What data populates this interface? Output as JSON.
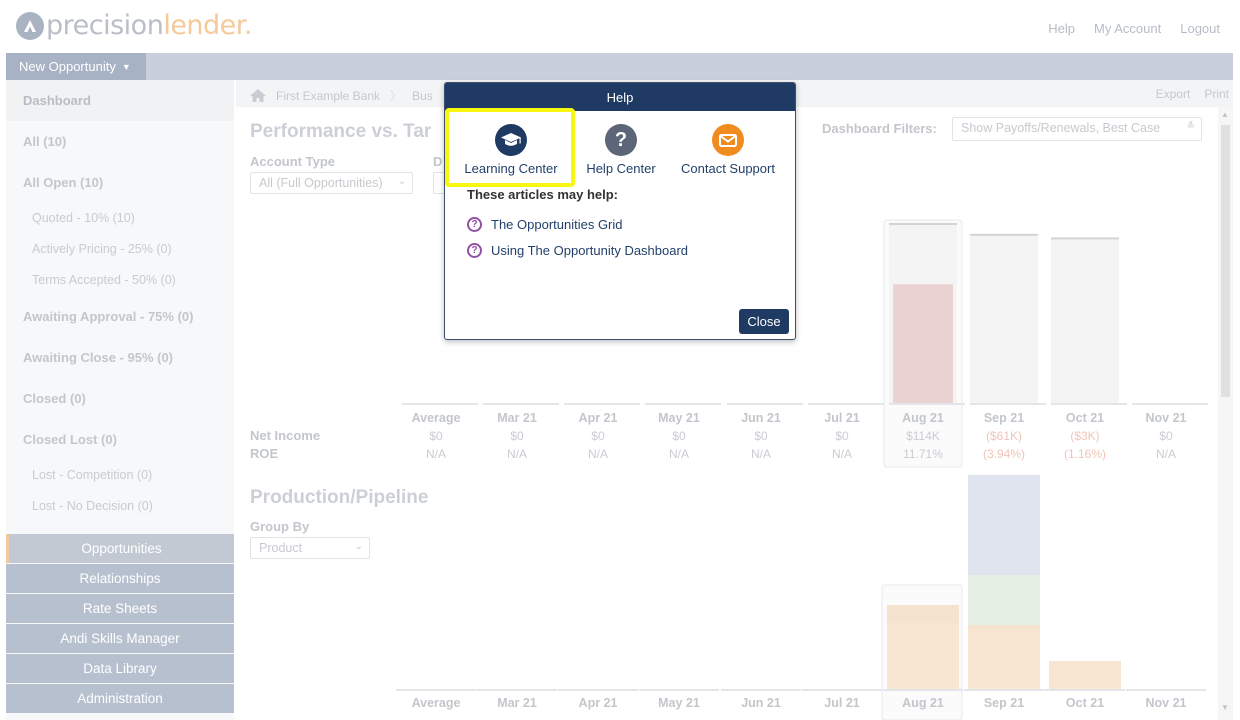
{
  "header": {
    "logo_part1": "precision",
    "logo_part2": "lender.",
    "links": [
      "Help",
      "My Account",
      "Logout"
    ]
  },
  "nav": {
    "new_opportunity": "New Opportunity"
  },
  "sidebar": {
    "dashboard": "Dashboard",
    "all": "All (10)",
    "all_open": "All Open (10)",
    "quoted": "Quoted - 10% (10)",
    "actively_pricing": "Actively Pricing - 25% (0)",
    "terms_accepted": "Terms Accepted - 50% (0)",
    "awaiting_approval": "Awaiting Approval - 75% (0)",
    "awaiting_close": "Awaiting Close - 95% (0)",
    "closed": "Closed (0)",
    "closed_lost": "Closed Lost (0)",
    "lost_competition": "Lost - Competition (0)",
    "lost_no_decision": "Lost - No Decision (0)",
    "modules": [
      "Opportunities",
      "Relationships",
      "Rate Sheets",
      "Andi Skills Manager",
      "Data Library",
      "Administration"
    ]
  },
  "breadcrumb": {
    "bank": "First Example Bank",
    "next": "Bus",
    "export": "Export",
    "print": "Print"
  },
  "performance": {
    "title": "Performance vs. Tar",
    "account_type_label": "Account Type",
    "account_type_value": "All (Full Opportunities)",
    "d_label": "D",
    "filters_label": "Dashboard Filters:",
    "filters_value": "Show Payoffs/Renewals, Best Case",
    "row_net_income": "Net Income",
    "row_roe": "ROE"
  },
  "production": {
    "title": "Production/Pipeline",
    "group_by_label": "Group By",
    "group_by_value": "Product"
  },
  "chart_data": [
    {
      "type": "bar",
      "categories": [
        "Average",
        "Mar 21",
        "Apr 21",
        "May 21",
        "Jun 21",
        "Jul 21",
        "Aug 21",
        "Sep 21",
        "Oct 21",
        "Nov 21"
      ],
      "net_income": [
        "$0",
        "$0",
        "$0",
        "$0",
        "$0",
        "$0",
        "$114K",
        "($61K)",
        "($3K)",
        "$0"
      ],
      "roe": [
        "N/A",
        "N/A",
        "N/A",
        "N/A",
        "N/A",
        "N/A",
        "11.71%",
        "(3.94%)",
        "(1.16%)",
        "N/A"
      ],
      "series": [
        {
          "values": [
            0,
            0,
            0,
            0,
            0,
            0,
            0.66,
            0,
            0,
            0
          ]
        },
        {
          "values": [
            0,
            0,
            0,
            0,
            0,
            0,
            1.0,
            0.94,
            0.92,
            0
          ]
        }
      ]
    },
    {
      "type": "bar",
      "categories": [
        "Average",
        "Mar 21",
        "Apr 21",
        "May 21",
        "Jun 21",
        "Jul 21",
        "Aug 21",
        "Sep 21",
        "Oct 21",
        "Nov 21"
      ],
      "series": [
        {
          "values": [
            0,
            0,
            0,
            0,
            0,
            0,
            0.33,
            0.3,
            0.14,
            0
          ]
        },
        {
          "values": [
            0,
            0,
            0,
            0,
            0,
            0,
            0.09,
            0.02,
            0,
            0
          ]
        },
        {
          "values": [
            0,
            0,
            0,
            0,
            0,
            0,
            0,
            0.25,
            0,
            0
          ]
        },
        {
          "values": [
            0,
            0,
            0,
            0,
            0,
            0,
            0,
            0.5,
            0,
            0
          ]
        }
      ]
    }
  ],
  "help_dialog": {
    "title": "Help",
    "learning_center": "Learning Center",
    "help_center": "Help Center",
    "contact_support": "Contact Support",
    "articles_heading": "These articles may help:",
    "articles": [
      "The Opportunities Grid",
      "Using The Opportunity Dashboard"
    ],
    "close": "Close"
  },
  "colors": {
    "dialog_header": "#1f3a63",
    "highlight": "#f7f710",
    "support_orange": "#f08c1e",
    "article_icon": "#9250a4"
  }
}
